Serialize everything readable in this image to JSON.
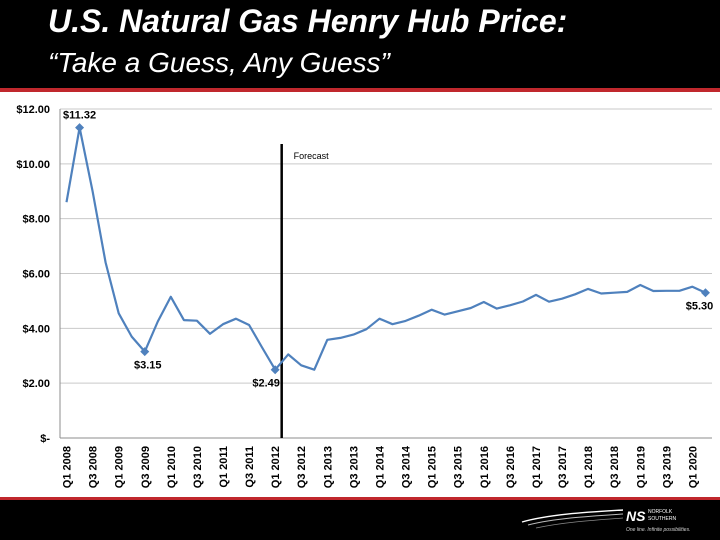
{
  "slide": {
    "title": "U.S. Natural Gas Henry Hub Price:",
    "subtitle": "“Take a Guess, Any Guess”"
  },
  "brand": {
    "logo_mark": "NS",
    "logo_name_1": "NORFOLK",
    "logo_name_2": "SOUTHERN",
    "tagline": "One line. Infinite possibilities.",
    "accent_color": "#c0282d",
    "header_color": "#000000"
  },
  "chart_data": {
    "type": "line",
    "title": "",
    "xlabel": "",
    "ylabel": "",
    "ylim": [
      0,
      12
    ],
    "y_ticks": [
      0,
      2,
      4,
      6,
      8,
      10,
      12
    ],
    "y_tick_labels": [
      "$-",
      "$2.00",
      "$4.00",
      "$6.00",
      "$8.00",
      "$10.00",
      "$12.00"
    ],
    "grid": true,
    "line_color": "#4f81bd",
    "categories": [
      "Q1 2008",
      "Q2 2008",
      "Q3 2008",
      "Q4 2008",
      "Q1 2009",
      "Q2 2009",
      "Q3 2009",
      "Q4 2009",
      "Q1 2010",
      "Q2 2010",
      "Q3 2010",
      "Q4 2010",
      "Q1 2011",
      "Q2 2011",
      "Q3 2011",
      "Q4 2011",
      "Q1 2012",
      "Q2 2012",
      "Q3 2012",
      "Q4 2012",
      "Q1 2013",
      "Q2 2013",
      "Q3 2013",
      "Q4 2013",
      "Q1 2014",
      "Q2 2014",
      "Q3 2014",
      "Q4 2014",
      "Q1 2015",
      "Q2 2015",
      "Q3 2015",
      "Q4 2015",
      "Q1 2016",
      "Q2 2016",
      "Q3 2016",
      "Q4 2016",
      "Q1 2017",
      "Q2 2017",
      "Q3 2017",
      "Q4 2017",
      "Q1 2018",
      "Q2 2018",
      "Q3 2018",
      "Q4 2018",
      "Q1 2019",
      "Q2 2019",
      "Q3 2019",
      "Q4 2019",
      "Q1 2020",
      "Q2 2020"
    ],
    "x_tick_labels": [
      "Q1 2008",
      "Q3 2008",
      "Q1 2009",
      "Q3 2009",
      "Q1 2010",
      "Q3 2010",
      "Q1 2011",
      "Q3 2011",
      "Q1 2012",
      "Q3 2012",
      "Q1 2013",
      "Q3 2013",
      "Q1 2014",
      "Q3 2014",
      "Q1 2015",
      "Q3 2015",
      "Q1 2016",
      "Q3 2016",
      "Q1 2017",
      "Q3 2017",
      "Q1 2018",
      "Q3 2018",
      "Q1 2019",
      "Q3 2019",
      "Q1 2020"
    ],
    "series": [
      {
        "values": [
          8.6,
          11.32,
          9.0,
          6.4,
          4.55,
          3.7,
          3.15,
          4.25,
          5.15,
          4.3,
          4.28,
          3.8,
          4.15,
          4.35,
          4.12,
          3.3,
          2.49,
          3.05,
          2.65,
          2.49,
          3.58,
          3.65,
          3.77,
          3.97,
          4.35,
          4.15,
          4.27,
          4.46,
          4.68,
          4.5,
          4.62,
          4.74,
          4.96,
          4.72,
          4.84,
          4.98,
          5.22,
          4.97,
          5.08,
          5.24,
          5.44,
          5.27,
          5.3,
          5.33,
          5.58,
          5.36,
          5.37,
          5.37,
          5.52,
          5.3
        ]
      }
    ],
    "markers": [
      {
        "index": 1,
        "label": "$11.32"
      },
      {
        "index": 6,
        "label": "$3.15"
      },
      {
        "index": 16,
        "label": "$2.49"
      },
      {
        "index": 49,
        "label": "$5.30"
      }
    ],
    "forecast_line": {
      "after_index": 17,
      "label": "Forecast"
    }
  }
}
